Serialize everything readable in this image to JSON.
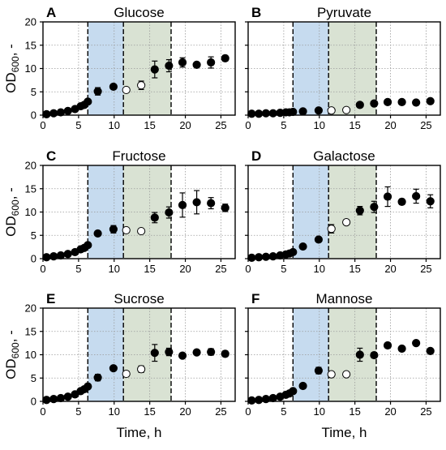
{
  "figure": {
    "ylabel_main": "OD",
    "ylabel_sub": "600",
    "ylabel_tail": ", -",
    "xlabel": "Time, h"
  },
  "colors": {
    "phase1_shade": "#c6dbef",
    "phase2_shade": "#d9e2d3",
    "marker": "#000000",
    "grid": "#9a9a9a"
  },
  "chart_data": [
    {
      "letter": "A",
      "title": "Glucose",
      "type": "scatter",
      "xlim": [
        0,
        27
      ],
      "ylim": [
        0,
        20
      ],
      "xticks": [
        0,
        5,
        10,
        15,
        20,
        25
      ],
      "yticks": [
        0,
        5,
        10,
        15,
        20
      ],
      "grid": true,
      "phase_boundaries": [
        6.3,
        11.3,
        18
      ],
      "filled": {
        "x": [
          0.5,
          1.5,
          2.5,
          3.5,
          4.5,
          5.3,
          5.8,
          6.3,
          7.7,
          9.9,
          15.7,
          17.7,
          19.6,
          21.6,
          23.6,
          25.6
        ],
        "y": [
          0.2,
          0.4,
          0.6,
          0.9,
          1.3,
          1.9,
          2.2,
          2.9,
          5.1,
          6.1,
          9.8,
          10.6,
          11.3,
          10.8,
          11.3,
          12.2
        ],
        "err": [
          0,
          0,
          0,
          0,
          0,
          0.3,
          0.3,
          0.4,
          0.8,
          0.5,
          1.8,
          1.3,
          1.0,
          0.5,
          1.2,
          0.6
        ]
      },
      "open": {
        "x": [
          11.7,
          13.8
        ],
        "y": [
          5.4,
          6.4
        ],
        "err": [
          0.4,
          0.9
        ]
      }
    },
    {
      "letter": "B",
      "title": "Pyruvate",
      "type": "scatter",
      "xlim": [
        0,
        27
      ],
      "ylim": [
        0,
        20
      ],
      "xticks": [
        0,
        5,
        10,
        15,
        20,
        25
      ],
      "yticks": [
        0,
        5,
        10,
        15,
        20
      ],
      "grid": true,
      "phase_boundaries": [
        6.3,
        11.3,
        18
      ],
      "filled": {
        "x": [
          0.5,
          1.5,
          2.5,
          3.5,
          4.5,
          5.3,
          5.8,
          6.3,
          7.7,
          9.9,
          15.7,
          17.7,
          19.6,
          21.6,
          23.6,
          25.6
        ],
        "y": [
          0.3,
          0.3,
          0.4,
          0.4,
          0.5,
          0.6,
          0.6,
          0.7,
          0.8,
          1.0,
          2.2,
          2.5,
          2.8,
          2.8,
          2.7,
          3.0
        ],
        "err": [
          0,
          0,
          0,
          0,
          0,
          0,
          0,
          0,
          0,
          0,
          0,
          0,
          0,
          0,
          0.3,
          0
        ]
      },
      "open": {
        "x": [
          11.7,
          13.8
        ],
        "y": [
          1.0,
          1.1
        ],
        "err": [
          0,
          0
        ]
      }
    },
    {
      "letter": "C",
      "title": "Fructose",
      "type": "scatter",
      "xlim": [
        0,
        27
      ],
      "ylim": [
        0,
        20
      ],
      "xticks": [
        0,
        5,
        10,
        15,
        20,
        25
      ],
      "yticks": [
        0,
        5,
        10,
        15,
        20
      ],
      "grid": true,
      "phase_boundaries": [
        6.3,
        11.3,
        18
      ],
      "filled": {
        "x": [
          0.5,
          1.5,
          2.5,
          3.5,
          4.5,
          5.3,
          5.8,
          6.3,
          7.7,
          9.9,
          15.7,
          17.7,
          19.6,
          21.6,
          23.6,
          25.6
        ],
        "y": [
          0.3,
          0.5,
          0.7,
          1.0,
          1.4,
          2.0,
          2.3,
          2.9,
          5.4,
          6.3,
          8.8,
          9.9,
          11.5,
          12.1,
          11.9,
          10.9
        ],
        "err": [
          0,
          0,
          0,
          0,
          0,
          0.3,
          0.3,
          0.5,
          0.4,
          0.8,
          1.1,
          1.2,
          2.6,
          2.5,
          1.2,
          0.8
        ]
      },
      "open": {
        "x": [
          11.7,
          13.8
        ],
        "y": [
          6.1,
          5.9
        ],
        "err": [
          0.5,
          0.3
        ]
      }
    },
    {
      "letter": "D",
      "title": "Galactose",
      "type": "scatter",
      "xlim": [
        0,
        27
      ],
      "ylim": [
        0,
        20
      ],
      "xticks": [
        0,
        5,
        10,
        15,
        20,
        25
      ],
      "yticks": [
        0,
        5,
        10,
        15,
        20
      ],
      "grid": true,
      "phase_boundaries": [
        6.3,
        11.3,
        18
      ],
      "filled": {
        "x": [
          0.5,
          1.5,
          2.5,
          3.5,
          4.5,
          5.3,
          5.8,
          6.3,
          7.7,
          9.9,
          15.7,
          17.7,
          19.6,
          21.6,
          23.6,
          25.6
        ],
        "y": [
          0.2,
          0.3,
          0.4,
          0.5,
          0.7,
          0.9,
          1.1,
          1.4,
          2.6,
          4.1,
          10.3,
          11.1,
          13.3,
          12.2,
          13.4,
          12.3
        ],
        "err": [
          0,
          0,
          0,
          0,
          0,
          0,
          0,
          0.2,
          0.3,
          0.3,
          0.9,
          1.2,
          2.1,
          0.6,
          1.5,
          1.4
        ]
      },
      "open": {
        "x": [
          11.7,
          13.8
        ],
        "y": [
          6.4,
          7.8
        ],
        "err": [
          0.9,
          0.4
        ]
      }
    },
    {
      "letter": "E",
      "title": "Sucrose",
      "type": "scatter",
      "xlim": [
        0,
        27
      ],
      "ylim": [
        0,
        20
      ],
      "xticks": [
        0,
        5,
        10,
        15,
        20,
        25
      ],
      "yticks": [
        0,
        5,
        10,
        15,
        20
      ],
      "grid": true,
      "phase_boundaries": [
        6.3,
        11.3,
        18
      ],
      "filled": {
        "x": [
          0.5,
          1.5,
          2.5,
          3.5,
          4.5,
          5.3,
          5.8,
          6.3,
          7.7,
          9.9,
          15.7,
          17.7,
          19.6,
          21.6,
          23.6,
          25.6
        ],
        "y": [
          0.3,
          0.5,
          0.7,
          1.0,
          1.5,
          2.2,
          2.6,
          3.2,
          5.1,
          7.1,
          10.4,
          10.6,
          9.8,
          10.5,
          10.6,
          10.2
        ],
        "err": [
          0,
          0,
          0,
          0,
          0,
          0.3,
          0.4,
          0.5,
          0.7,
          0.5,
          1.8,
          0.8,
          0.5,
          0.4,
          0.7,
          0.6
        ]
      },
      "open": {
        "x": [
          11.7,
          13.8
        ],
        "y": [
          5.9,
          6.9
        ],
        "err": [
          0.6,
          0.7
        ]
      }
    },
    {
      "letter": "F",
      "title": "Mannose",
      "type": "scatter",
      "xlim": [
        0,
        27
      ],
      "ylim": [
        0,
        20
      ],
      "xticks": [
        0,
        5,
        10,
        15,
        20,
        25
      ],
      "yticks": [
        0,
        5,
        10,
        15,
        20
      ],
      "grid": true,
      "phase_boundaries": [
        6.3,
        11.3,
        18
      ],
      "filled": {
        "x": [
          0.5,
          1.5,
          2.5,
          3.5,
          4.5,
          5.3,
          5.8,
          6.3,
          7.7,
          9.9,
          15.7,
          17.7,
          19.6,
          21.6,
          23.6,
          25.6
        ],
        "y": [
          0.2,
          0.3,
          0.5,
          0.7,
          1.0,
          1.4,
          1.7,
          2.2,
          3.3,
          6.6,
          10.0,
          9.9,
          12.0,
          11.3,
          12.5,
          10.8
        ],
        "err": [
          0,
          0,
          0,
          0,
          0,
          0.2,
          0.2,
          0.3,
          0.3,
          0.7,
          1.4,
          0.6,
          0.4,
          0.4,
          0.4,
          0.5
        ]
      },
      "open": {
        "x": [
          11.7,
          13.8
        ],
        "y": [
          5.8,
          5.8
        ],
        "err": [
          0.3,
          0.3
        ]
      }
    }
  ]
}
